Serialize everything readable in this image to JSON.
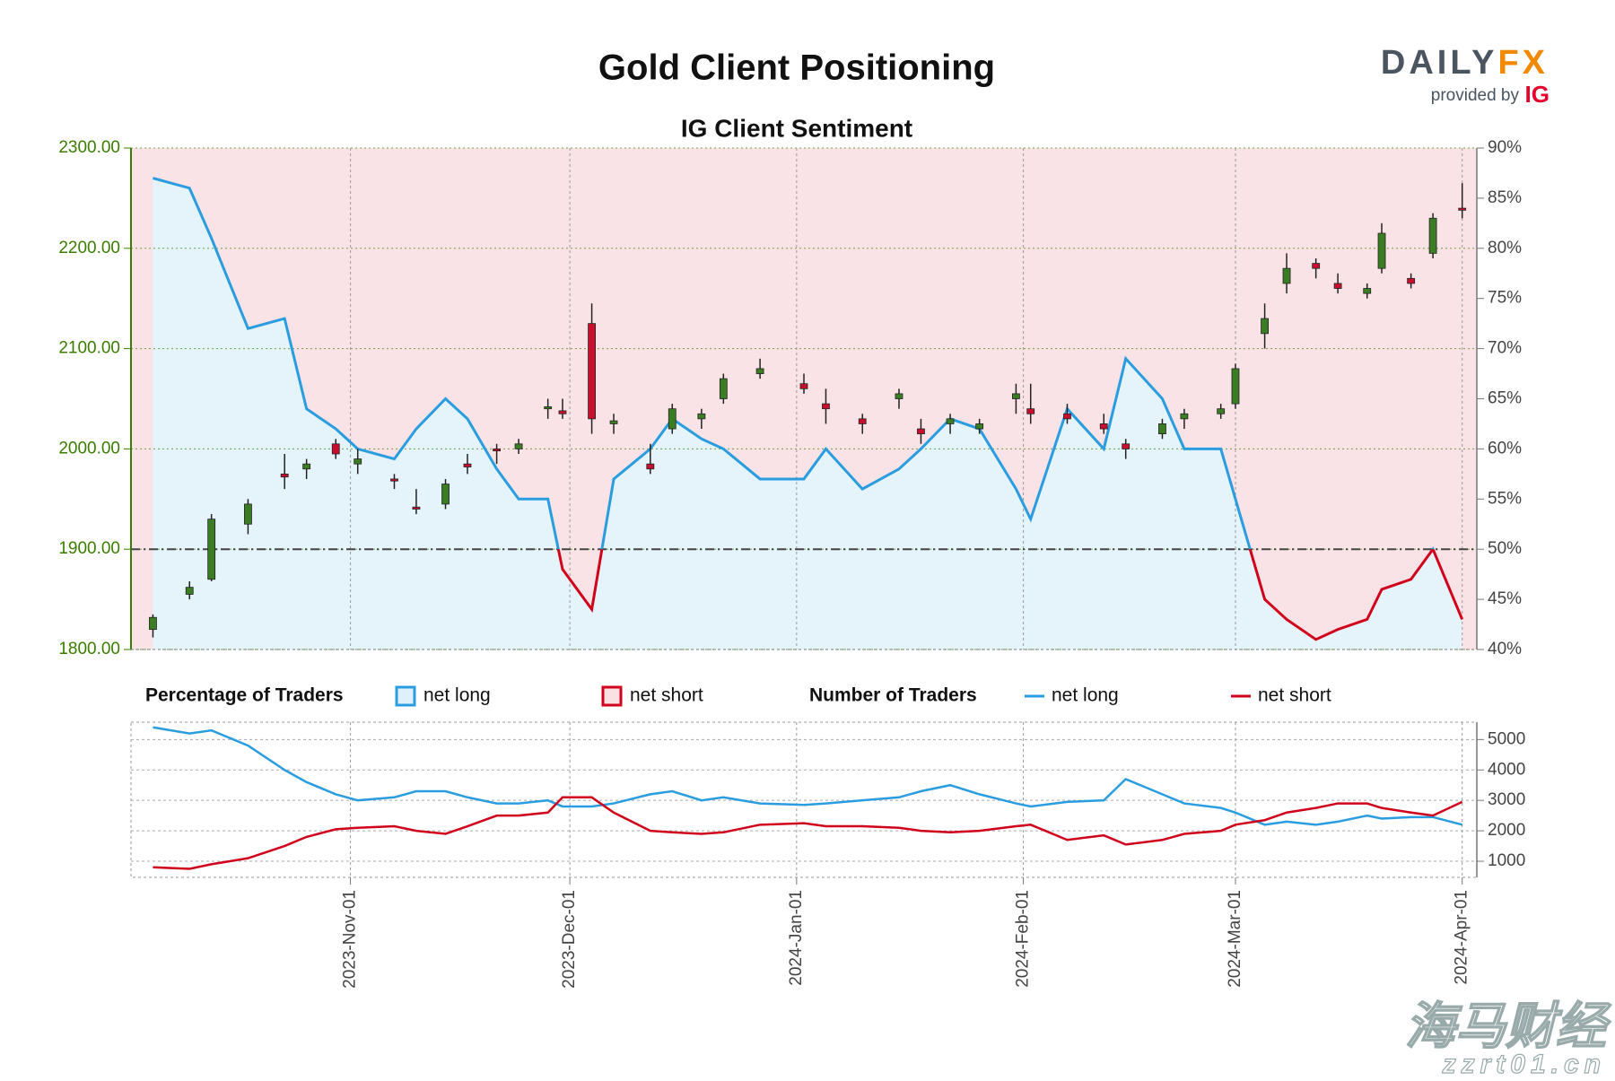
{
  "chart_data": {
    "type": "candlestick",
    "title": "Gold Client Positioning",
    "subtitle": "IG Client Sentiment",
    "logo": {
      "brand": "DAILY",
      "brand_accent": "FX",
      "tagline": "provided by",
      "partner": "IG"
    },
    "watermark": {
      "text": "海马财经",
      "url": "zzrt01.cn"
    },
    "x": [
      "2023-10-05",
      "2023-10-10",
      "2023-10-13",
      "2023-10-18",
      "2023-10-23",
      "2023-10-26",
      "2023-10-30",
      "2023-11-02",
      "2023-11-07",
      "2023-11-10",
      "2023-11-14",
      "2023-11-17",
      "2023-11-21",
      "2023-11-24",
      "2023-11-28",
      "2023-11-30",
      "2023-12-04",
      "2023-12-07",
      "2023-12-12",
      "2023-12-15",
      "2023-12-19",
      "2023-12-22",
      "2023-12-27",
      "2024-01-02",
      "2024-01-05",
      "2024-01-10",
      "2024-01-15",
      "2024-01-18",
      "2024-01-22",
      "2024-01-26",
      "2024-01-31",
      "2024-02-02",
      "2024-02-07",
      "2024-02-12",
      "2024-02-15",
      "2024-02-20",
      "2024-02-23",
      "2024-02-28",
      "2024-03-01",
      "2024-03-05",
      "2024-03-08",
      "2024-03-12",
      "2024-03-15",
      "2024-03-19",
      "2024-03-21",
      "2024-03-25",
      "2024-03-28",
      "2024-04-01"
    ],
    "open": [
      1820,
      1855,
      1870,
      1925,
      1975,
      1980,
      2005,
      1985,
      1970,
      1942,
      1945,
      1985,
      2000,
      2000,
      2040,
      2038,
      2125,
      2025,
      1985,
      2020,
      2030,
      2050,
      2075,
      2065,
      2045,
      2030,
      2050,
      2020,
      2025,
      2020,
      2050,
      2040,
      2035,
      2025,
      2005,
      2015,
      2030,
      2035,
      2045,
      2115,
      2165,
      2185,
      2165,
      2155,
      2180,
      2170,
      2195,
      2240
    ],
    "high": [
      1835,
      1868,
      1935,
      1950,
      1995,
      1990,
      2010,
      2000,
      1975,
      1960,
      1970,
      1995,
      2005,
      2010,
      2050,
      2050,
      2145,
      2035,
      2005,
      2045,
      2040,
      2075,
      2090,
      2075,
      2060,
      2035,
      2060,
      2030,
      2035,
      2030,
      2065,
      2065,
      2045,
      2035,
      2010,
      2030,
      2040,
      2045,
      2085,
      2145,
      2195,
      2190,
      2175,
      2165,
      2225,
      2175,
      2235,
      2265
    ],
    "low": [
      1812,
      1850,
      1868,
      1915,
      1960,
      1970,
      1990,
      1975,
      1960,
      1935,
      1940,
      1975,
      1985,
      1995,
      2030,
      2030,
      2015,
      2015,
      1975,
      2015,
      2020,
      2045,
      2070,
      2055,
      2025,
      2015,
      2040,
      2005,
      2015,
      2015,
      2035,
      2025,
      2025,
      2015,
      1990,
      2010,
      2020,
      2030,
      2040,
      2100,
      2155,
      2170,
      2155,
      2150,
      2175,
      2160,
      2190,
      2230
    ],
    "close": [
      1832,
      1862,
      1930,
      1945,
      1972,
      1985,
      1995,
      1990,
      1968,
      1940,
      1965,
      1982,
      1998,
      2005,
      2042,
      2035,
      2030,
      2028,
      1980,
      2040,
      2035,
      2070,
      2080,
      2060,
      2040,
      2025,
      2055,
      2015,
      2030,
      2025,
      2055,
      2035,
      2030,
      2020,
      2000,
      2025,
      2035,
      2040,
      2080,
      2130,
      2180,
      2180,
      2160,
      2160,
      2215,
      2165,
      2230,
      2238
    ],
    "up_color": "#3a7d22",
    "down_color": "#c8102e",
    "xlim": [
      "2023-10-02",
      "2024-04-03"
    ],
    "xticks": [
      {
        "value": "2023-11-01",
        "label": "2023-Nov-01"
      },
      {
        "value": "2023-12-01",
        "label": "2023-Dec-01"
      },
      {
        "value": "2024-01-01",
        "label": "2024-Jan-01"
      },
      {
        "value": "2024-02-01",
        "label": "2024-Feb-01"
      },
      {
        "value": "2024-03-01",
        "label": "2024-Mar-01"
      },
      {
        "value": "2024-04-01",
        "label": "2024-Apr-01"
      }
    ],
    "ylim": [
      1800,
      2300
    ],
    "yticks": [
      {
        "value": 1800,
        "label": "1800.00"
      },
      {
        "value": 1900,
        "label": "1900.00"
      },
      {
        "value": 2000,
        "label": "2000.00"
      },
      {
        "value": 2100,
        "label": "2100.00"
      },
      {
        "value": 2200,
        "label": "2200.00"
      },
      {
        "value": 2300,
        "label": "2300.00"
      }
    ],
    "y2lim": [
      40,
      90
    ],
    "y2ticks": [
      {
        "value": 40,
        "label": "40%"
      },
      {
        "value": 45,
        "label": "45%"
      },
      {
        "value": 50,
        "label": "50%"
      },
      {
        "value": 55,
        "label": "55%"
      },
      {
        "value": 60,
        "label": "60%"
      },
      {
        "value": 65,
        "label": "65%"
      },
      {
        "value": 70,
        "label": "70%"
      },
      {
        "value": 75,
        "label": "75%"
      },
      {
        "value": 80,
        "label": "80%"
      },
      {
        "value": 85,
        "label": "85%"
      },
      {
        "value": 90,
        "label": "90%"
      }
    ],
    "y2_reference": 50,
    "legend_title": "Percentage of Traders",
    "legend": [
      {
        "name": "net long",
        "color": "#2a9de0"
      },
      {
        "name": "net short",
        "color": "#d0021b"
      }
    ],
    "sentiment": {
      "axis": "y2",
      "values": [
        87,
        86,
        81,
        72,
        73,
        64,
        62,
        60,
        59,
        62,
        65,
        63,
        58,
        55,
        55,
        48,
        44,
        57,
        60,
        63,
        61,
        60,
        57,
        57,
        60,
        56,
        58,
        60,
        63,
        62,
        56,
        53,
        64,
        60,
        69,
        65,
        60,
        60,
        55,
        45,
        43,
        41,
        42,
        43,
        46,
        47,
        50,
        43
      ]
    },
    "traders": {
      "legend_title": "Number of Traders",
      "ylim": [
        470,
        5570
      ],
      "yticks": [
        1000,
        2000,
        3000,
        4000,
        5000
      ],
      "series": [
        {
          "name": "net long",
          "color": "#2a9de0",
          "values": [
            5400,
            5200,
            5300,
            4800,
            4000,
            3600,
            3200,
            3000,
            3100,
            3300,
            3300,
            3100,
            2900,
            2900,
            3000,
            2800,
            2800,
            2900,
            3200,
            3300,
            3000,
            3100,
            2900,
            2850,
            2900,
            3000,
            3100,
            3300,
            3500,
            3200,
            2900,
            2800,
            2950,
            3000,
            3700,
            3200,
            2900,
            2750,
            2600,
            2200,
            2300,
            2200,
            2300,
            2500,
            2400,
            2450,
            2450,
            2200
          ]
        },
        {
          "name": "net short",
          "color": "#d0021b",
          "values": [
            800,
            750,
            900,
            1100,
            1500,
            1800,
            2050,
            2100,
            2150,
            2000,
            1900,
            2150,
            2500,
            2500,
            2600,
            3100,
            3100,
            2600,
            2000,
            1950,
            1900,
            1950,
            2200,
            2250,
            2150,
            2150,
            2100,
            2000,
            1950,
            2000,
            2150,
            2200,
            1700,
            1850,
            1550,
            1700,
            1900,
            2000,
            2200,
            2350,
            2600,
            2750,
            2900,
            2900,
            2750,
            2600,
            2500,
            2950
          ]
        }
      ]
    }
  }
}
